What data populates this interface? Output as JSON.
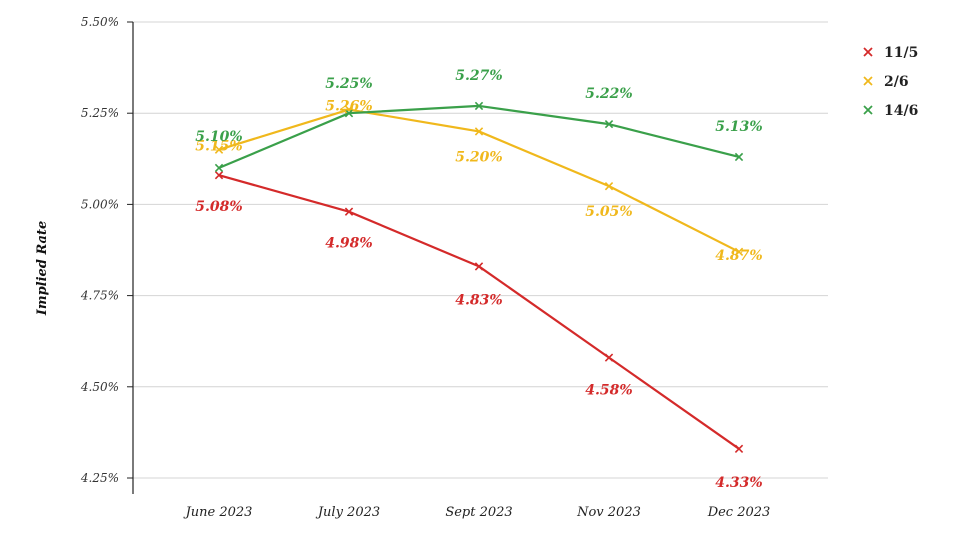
{
  "chart_data": {
    "type": "line",
    "ylabel": "Implied Rate",
    "xlabel": "",
    "categories": [
      "June 2023",
      "July 2023",
      "Sept 2023",
      "Nov 2023",
      "Dec 2023"
    ],
    "ylim": [
      4.25,
      5.5
    ],
    "yticks": [
      4.25,
      4.5,
      4.75,
      5.0,
      5.25,
      5.5
    ],
    "ytick_labels": [
      "4.25%",
      "4.50%",
      "4.75%",
      "5.00%",
      "5.25%",
      "5.50%"
    ],
    "grid": true,
    "legend": "right",
    "series": [
      {
        "name": "11/5",
        "color": "#d42a2a",
        "values": [
          5.08,
          4.98,
          4.83,
          4.58,
          4.33
        ],
        "labels": [
          "5.08%",
          "4.98%",
          "4.83%",
          "4.58%",
          "4.33%"
        ]
      },
      {
        "name": "2/6",
        "color": "#f0b81c",
        "values": [
          5.15,
          5.26,
          5.2,
          5.05,
          4.87
        ],
        "labels": [
          "5.15%",
          "5.26%",
          "5.20%",
          "5.05%",
          "4.87%"
        ]
      },
      {
        "name": "14/6",
        "color": "#3aa04a",
        "values": [
          5.1,
          5.25,
          5.27,
          5.22,
          5.13
        ],
        "labels": [
          "5.10%",
          "5.25%",
          "5.27%",
          "5.22%",
          "5.13%"
        ]
      }
    ]
  }
}
